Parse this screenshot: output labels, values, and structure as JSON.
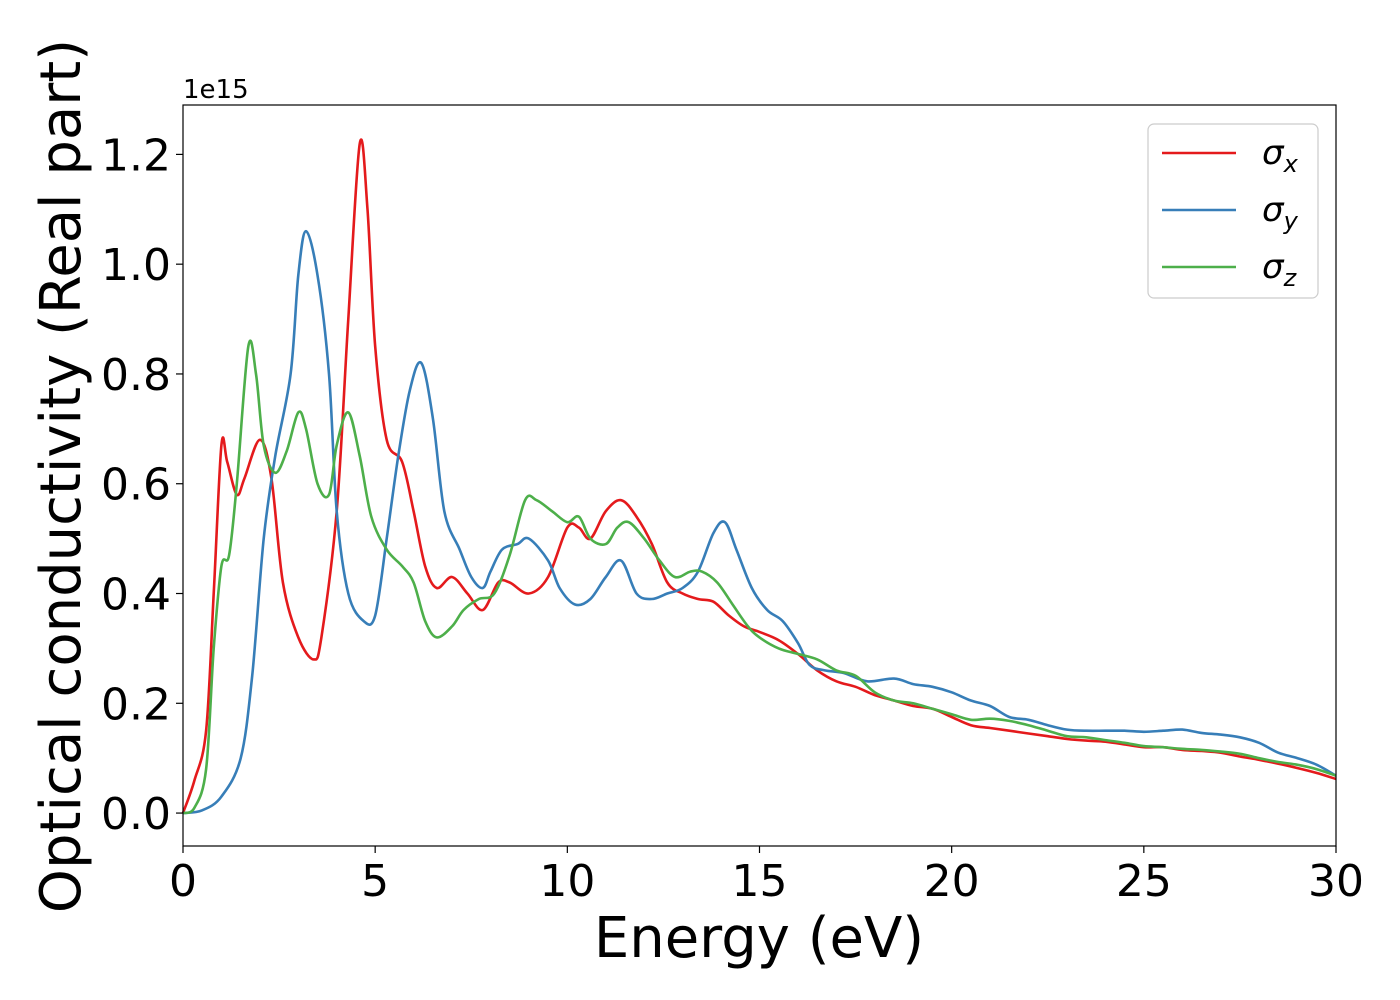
{
  "chart_data": {
    "type": "line",
    "xlabel": "Energy (eV)",
    "ylabel": "Optical conductivity (Real part)",
    "y_offset_label": "1e15",
    "xlim": [
      0,
      30
    ],
    "ylim": [
      -0.06,
      1.29
    ],
    "y_scale_note_value": 1000000000000000.0,
    "grid": false,
    "legend_position": "top-right",
    "x_ticks": [
      0,
      5,
      10,
      15,
      20,
      25,
      30
    ],
    "x_tick_labels": [
      "0",
      "5",
      "10",
      "15",
      "20",
      "25",
      "30"
    ],
    "y_ticks": [
      0.0,
      0.2,
      0.4,
      0.6,
      0.8,
      1.0,
      1.2
    ],
    "y_tick_labels": [
      "0.0",
      "0.2",
      "0.4",
      "0.6",
      "0.8",
      "1.0",
      "1.2"
    ],
    "series": [
      {
        "name": "σx",
        "legend_base": "σ",
        "legend_sub": "x",
        "color": "#e41a1c",
        "points": [
          [
            0,
            0
          ],
          [
            0.3,
            0.06
          ],
          [
            0.6,
            0.15
          ],
          [
            0.8,
            0.4
          ],
          [
            1.0,
            0.67
          ],
          [
            1.15,
            0.64
          ],
          [
            1.4,
            0.58
          ],
          [
            1.6,
            0.61
          ],
          [
            2.0,
            0.68
          ],
          [
            2.3,
            0.61
          ],
          [
            2.6,
            0.42
          ],
          [
            3.0,
            0.32
          ],
          [
            3.4,
            0.28
          ],
          [
            3.6,
            0.32
          ],
          [
            4.0,
            0.55
          ],
          [
            4.3,
            0.9
          ],
          [
            4.6,
            1.22
          ],
          [
            4.8,
            1.1
          ],
          [
            5.0,
            0.85
          ],
          [
            5.3,
            0.68
          ],
          [
            5.7,
            0.64
          ],
          [
            6.0,
            0.55
          ],
          [
            6.3,
            0.45
          ],
          [
            6.6,
            0.41
          ],
          [
            7.0,
            0.43
          ],
          [
            7.4,
            0.4
          ],
          [
            7.8,
            0.37
          ],
          [
            8.2,
            0.42
          ],
          [
            8.5,
            0.42
          ],
          [
            9.0,
            0.4
          ],
          [
            9.5,
            0.43
          ],
          [
            10.0,
            0.52
          ],
          [
            10.3,
            0.52
          ],
          [
            10.6,
            0.5
          ],
          [
            11.0,
            0.55
          ],
          [
            11.4,
            0.57
          ],
          [
            11.8,
            0.54
          ],
          [
            12.2,
            0.49
          ],
          [
            12.6,
            0.42
          ],
          [
            13.0,
            0.4
          ],
          [
            13.4,
            0.39
          ],
          [
            13.8,
            0.385
          ],
          [
            14.2,
            0.36
          ],
          [
            14.6,
            0.34
          ],
          [
            15.0,
            0.33
          ],
          [
            15.5,
            0.315
          ],
          [
            16.0,
            0.29
          ],
          [
            16.5,
            0.26
          ],
          [
            17.0,
            0.24
          ],
          [
            17.5,
            0.23
          ],
          [
            18.0,
            0.215
          ],
          [
            18.5,
            0.205
          ],
          [
            19.0,
            0.195
          ],
          [
            19.5,
            0.19
          ],
          [
            20.0,
            0.175
          ],
          [
            20.5,
            0.16
          ],
          [
            21.0,
            0.155
          ],
          [
            21.5,
            0.15
          ],
          [
            22.0,
            0.145
          ],
          [
            22.5,
            0.14
          ],
          [
            23.0,
            0.135
          ],
          [
            23.5,
            0.132
          ],
          [
            24.0,
            0.13
          ],
          [
            24.5,
            0.125
          ],
          [
            25.0,
            0.12
          ],
          [
            25.5,
            0.12
          ],
          [
            26.0,
            0.115
          ],
          [
            26.5,
            0.113
          ],
          [
            27.0,
            0.11
          ],
          [
            27.5,
            0.103
          ],
          [
            28.0,
            0.097
          ],
          [
            28.5,
            0.09
          ],
          [
            29.0,
            0.082
          ],
          [
            29.5,
            0.073
          ],
          [
            30.0,
            0.062
          ]
        ]
      },
      {
        "name": "σy",
        "legend_base": "σ",
        "legend_sub": "y",
        "color": "#377eb8",
        "points": [
          [
            0,
            0
          ],
          [
            0.5,
            0.005
          ],
          [
            1.0,
            0.03
          ],
          [
            1.5,
            0.1
          ],
          [
            1.8,
            0.25
          ],
          [
            2.1,
            0.5
          ],
          [
            2.4,
            0.65
          ],
          [
            2.8,
            0.8
          ],
          [
            3.0,
            0.98
          ],
          [
            3.2,
            1.06
          ],
          [
            3.5,
            0.98
          ],
          [
            3.8,
            0.8
          ],
          [
            4.0,
            0.55
          ],
          [
            4.3,
            0.4
          ],
          [
            4.7,
            0.35
          ],
          [
            5.0,
            0.36
          ],
          [
            5.3,
            0.5
          ],
          [
            5.6,
            0.65
          ],
          [
            5.9,
            0.77
          ],
          [
            6.2,
            0.82
          ],
          [
            6.5,
            0.72
          ],
          [
            6.8,
            0.55
          ],
          [
            7.2,
            0.48
          ],
          [
            7.5,
            0.43
          ],
          [
            7.8,
            0.41
          ],
          [
            8.0,
            0.44
          ],
          [
            8.3,
            0.48
          ],
          [
            8.7,
            0.49
          ],
          [
            9.0,
            0.5
          ],
          [
            9.5,
            0.46
          ],
          [
            9.8,
            0.41
          ],
          [
            10.2,
            0.38
          ],
          [
            10.6,
            0.39
          ],
          [
            11.0,
            0.43
          ],
          [
            11.4,
            0.46
          ],
          [
            11.8,
            0.4
          ],
          [
            12.2,
            0.39
          ],
          [
            12.6,
            0.4
          ],
          [
            13.0,
            0.41
          ],
          [
            13.4,
            0.44
          ],
          [
            13.8,
            0.51
          ],
          [
            14.1,
            0.53
          ],
          [
            14.4,
            0.48
          ],
          [
            14.8,
            0.41
          ],
          [
            15.2,
            0.37
          ],
          [
            15.6,
            0.35
          ],
          [
            16.0,
            0.31
          ],
          [
            16.3,
            0.27
          ],
          [
            16.7,
            0.26
          ],
          [
            17.2,
            0.255
          ],
          [
            17.8,
            0.24
          ],
          [
            18.5,
            0.245
          ],
          [
            19.0,
            0.235
          ],
          [
            19.5,
            0.23
          ],
          [
            20.0,
            0.22
          ],
          [
            20.5,
            0.205
          ],
          [
            21.0,
            0.195
          ],
          [
            21.5,
            0.175
          ],
          [
            22.0,
            0.17
          ],
          [
            22.5,
            0.16
          ],
          [
            23.0,
            0.152
          ],
          [
            23.5,
            0.15
          ],
          [
            24.0,
            0.15
          ],
          [
            24.5,
            0.15
          ],
          [
            25.0,
            0.148
          ],
          [
            25.5,
            0.15
          ],
          [
            26.0,
            0.152
          ],
          [
            26.5,
            0.146
          ],
          [
            27.0,
            0.143
          ],
          [
            27.5,
            0.138
          ],
          [
            28.0,
            0.128
          ],
          [
            28.5,
            0.11
          ],
          [
            29.0,
            0.1
          ],
          [
            29.5,
            0.088
          ],
          [
            30.0,
            0.068
          ]
        ]
      },
      {
        "name": "σz",
        "legend_base": "σ",
        "legend_sub": "z",
        "color": "#4daf4a",
        "points": [
          [
            0,
            0
          ],
          [
            0.3,
            0.01
          ],
          [
            0.6,
            0.08
          ],
          [
            0.8,
            0.3
          ],
          [
            1.0,
            0.45
          ],
          [
            1.2,
            0.47
          ],
          [
            1.4,
            0.6
          ],
          [
            1.7,
            0.85
          ],
          [
            1.9,
            0.8
          ],
          [
            2.1,
            0.67
          ],
          [
            2.4,
            0.62
          ],
          [
            2.7,
            0.66
          ],
          [
            3.0,
            0.73
          ],
          [
            3.2,
            0.7
          ],
          [
            3.5,
            0.6
          ],
          [
            3.8,
            0.58
          ],
          [
            4.0,
            0.67
          ],
          [
            4.3,
            0.73
          ],
          [
            4.6,
            0.65
          ],
          [
            4.9,
            0.54
          ],
          [
            5.3,
            0.48
          ],
          [
            5.7,
            0.45
          ],
          [
            6.0,
            0.42
          ],
          [
            6.3,
            0.35
          ],
          [
            6.6,
            0.32
          ],
          [
            7.0,
            0.34
          ],
          [
            7.3,
            0.37
          ],
          [
            7.7,
            0.39
          ],
          [
            8.1,
            0.4
          ],
          [
            8.5,
            0.47
          ],
          [
            8.9,
            0.57
          ],
          [
            9.2,
            0.57
          ],
          [
            9.6,
            0.55
          ],
          [
            10.0,
            0.53
          ],
          [
            10.3,
            0.54
          ],
          [
            10.6,
            0.5
          ],
          [
            11.0,
            0.49
          ],
          [
            11.3,
            0.52
          ],
          [
            11.6,
            0.53
          ],
          [
            12.0,
            0.5
          ],
          [
            12.4,
            0.46
          ],
          [
            12.8,
            0.43
          ],
          [
            13.2,
            0.44
          ],
          [
            13.5,
            0.44
          ],
          [
            13.9,
            0.42
          ],
          [
            14.3,
            0.38
          ],
          [
            14.7,
            0.34
          ],
          [
            15.0,
            0.32
          ],
          [
            15.5,
            0.3
          ],
          [
            16.0,
            0.29
          ],
          [
            16.5,
            0.28
          ],
          [
            17.0,
            0.26
          ],
          [
            17.5,
            0.25
          ],
          [
            18.0,
            0.22
          ],
          [
            18.5,
            0.205
          ],
          [
            19.0,
            0.2
          ],
          [
            19.5,
            0.19
          ],
          [
            20.0,
            0.18
          ],
          [
            20.5,
            0.17
          ],
          [
            21.0,
            0.172
          ],
          [
            21.5,
            0.168
          ],
          [
            22.0,
            0.16
          ],
          [
            22.5,
            0.15
          ],
          [
            23.0,
            0.14
          ],
          [
            23.5,
            0.138
          ],
          [
            24.0,
            0.133
          ],
          [
            24.5,
            0.128
          ],
          [
            25.0,
            0.122
          ],
          [
            25.5,
            0.12
          ],
          [
            26.0,
            0.117
          ],
          [
            26.5,
            0.115
          ],
          [
            27.0,
            0.112
          ],
          [
            27.5,
            0.108
          ],
          [
            28.0,
            0.1
          ],
          [
            28.5,
            0.093
          ],
          [
            29.0,
            0.088
          ],
          [
            29.5,
            0.08
          ],
          [
            30.0,
            0.068
          ]
        ]
      }
    ]
  }
}
